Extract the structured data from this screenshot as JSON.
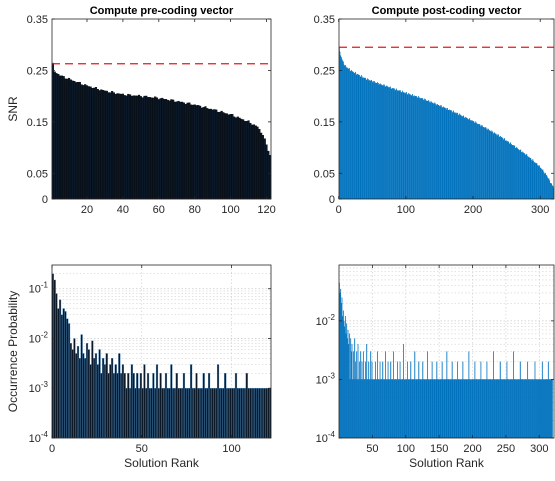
{
  "colors": {
    "dark_bar": "#0b1828",
    "blue_bar": "#0072bd",
    "threshold": "#e41a1c",
    "axis": "#262626",
    "grid": "#c8c8c8"
  },
  "chart_data": [
    {
      "type": "bar",
      "title": "Compute pre-coding vector",
      "xlabel": "",
      "ylabel": "SNR",
      "xlim": [
        0.5,
        122.5
      ],
      "ylim": [
        0,
        0.35
      ],
      "xticks": [
        20,
        40,
        60,
        80,
        100,
        120
      ],
      "yticks": [
        0,
        0.05,
        0.15,
        0.25,
        0.35
      ],
      "yticklabels": [
        "0",
        "0.05",
        "0.15",
        "0.25",
        "0.35"
      ],
      "threshold": 0.263,
      "series": [
        {
          "description": "SNR per solution, sorted descending",
          "n": 122,
          "anchors": [
            [
              1,
              0.262
            ],
            [
              2,
              0.248
            ],
            [
              5,
              0.24
            ],
            [
              10,
              0.233
            ],
            [
              20,
              0.22
            ],
            [
              30,
              0.21
            ],
            [
              40,
              0.203
            ],
            [
              50,
              0.2
            ],
            [
              60,
              0.196
            ],
            [
              70,
              0.19
            ],
            [
              80,
              0.183
            ],
            [
              90,
              0.174
            ],
            [
              100,
              0.164
            ],
            [
              110,
              0.15
            ],
            [
              115,
              0.14
            ],
            [
              118,
              0.125
            ],
            [
              120,
              0.105
            ],
            [
              122,
              0.085
            ]
          ]
        }
      ]
    },
    {
      "type": "bar",
      "title": "Compute post-coding vector",
      "xlabel": "",
      "ylabel": "",
      "xlim": [
        0.5,
        320.5
      ],
      "ylim": [
        0,
        0.35
      ],
      "xticks": [
        0,
        100,
        200,
        300
      ],
      "yticks": [
        0,
        0.05,
        0.15,
        0.25,
        0.35
      ],
      "yticklabels": [
        "0",
        "0.05",
        "0.15",
        "0.25",
        "0.35"
      ],
      "threshold": 0.295,
      "series": [
        {
          "description": "SNR per solution, sorted descending",
          "n": 320,
          "anchors": [
            [
              1,
              0.293
            ],
            [
              3,
              0.28
            ],
            [
              6,
              0.268
            ],
            [
              10,
              0.258
            ],
            [
              20,
              0.248
            ],
            [
              40,
              0.234
            ],
            [
              60,
              0.224
            ],
            [
              80,
              0.215
            ],
            [
              100,
              0.206
            ],
            [
              120,
              0.197
            ],
            [
              140,
              0.187
            ],
            [
              160,
              0.176
            ],
            [
              180,
              0.164
            ],
            [
              200,
              0.151
            ],
            [
              220,
              0.137
            ],
            [
              240,
              0.122
            ],
            [
              260,
              0.104
            ],
            [
              280,
              0.085
            ],
            [
              300,
              0.062
            ],
            [
              310,
              0.045
            ],
            [
              315,
              0.033
            ],
            [
              320,
              0.022
            ]
          ]
        }
      ]
    },
    {
      "type": "bar",
      "title": "",
      "xlabel": "Solution Rank",
      "ylabel": "Occurrence Probability",
      "yscale": "log",
      "xlim": [
        0,
        122
      ],
      "ylim": [
        0.0001,
        0.3
      ],
      "xticks": [
        0,
        50,
        100
      ],
      "yticks": [
        0.0001,
        0.001,
        0.01,
        0.1
      ],
      "yticklabels": [
        [
          "10",
          "-4"
        ],
        [
          "10",
          "-3"
        ],
        [
          "10",
          "-2"
        ],
        [
          "10",
          "-1"
        ]
      ],
      "series": [
        {
          "description": "occurrence probability per solution rank",
          "values": [
            0.2,
            0.15,
            0.08,
            0.04,
            0.06,
            0.03,
            0.04,
            0.035,
            0.025,
            0.02,
            0.008,
            0.006,
            0.01,
            0.005,
            0.007,
            0.004,
            0.012,
            0.005,
            0.004,
            0.008,
            0.006,
            0.003,
            0.009,
            0.004,
            0.005,
            0.003,
            0.006,
            0.002,
            0.004,
            0.003,
            0.005,
            0.002,
            0.003,
            0.004,
            0.002,
            0.003,
            0.002,
            0.005,
            0.002,
            0.003,
            0.002,
            0.001,
            0.002,
            0.001,
            0.003,
            0.002,
            0.001,
            0.002,
            0.001,
            0.002,
            0.001,
            0.003,
            0.001,
            0.002,
            0.001,
            0.001,
            0.002,
            0.001,
            0.003,
            0.001,
            0.002,
            0.001,
            0.001,
            0.002,
            0.001,
            0.001,
            0.003,
            0.001,
            0.001,
            0.002,
            0.001,
            0.001,
            0.001,
            0.002,
            0.001,
            0.001,
            0.001,
            0.003,
            0.001,
            0.001,
            0.002,
            0.001,
            0.001,
            0.001,
            0.002,
            0.001,
            0.001,
            0.002,
            0.001,
            0.001,
            0.001,
            0.001,
            0.003,
            0.001,
            0.001,
            0.001,
            0.002,
            0.001,
            0.001,
            0.001,
            0.001,
            0.001,
            0.002,
            0.001,
            0.001,
            0.001,
            0.001,
            0.001,
            0.002,
            0.001,
            0.001,
            0.001,
            0.001,
            0.001,
            0.001,
            0.001,
            0.001,
            0.001,
            0.001,
            0.001,
            0.001,
            0.001
          ]
        }
      ]
    },
    {
      "type": "bar",
      "title": "",
      "xlabel": "Solution Rank",
      "ylabel": "",
      "yscale": "log",
      "xlim": [
        0,
        322
      ],
      "ylim": [
        0.0001,
        0.09
      ],
      "xticks": [
        50,
        100,
        150,
        200,
        250,
        300
      ],
      "yticks": [
        0.0001,
        0.001,
        0.01
      ],
      "yticklabels": [
        [
          "10",
          "-4"
        ],
        [
          "10",
          "-3"
        ],
        [
          "10",
          "-2"
        ]
      ],
      "series": [
        {
          "description": "occurrence probability per solution rank; baseline 0.001 with sparse spikes",
          "n": 320,
          "baseline": 0.001,
          "spikes": [
            [
              1,
              0.045
            ],
            [
              2,
              0.03
            ],
            [
              3,
              0.035
            ],
            [
              4,
              0.02
            ],
            [
              5,
              0.025
            ],
            [
              6,
              0.012
            ],
            [
              7,
              0.015
            ],
            [
              8,
              0.01
            ],
            [
              9,
              0.008
            ],
            [
              10,
              0.012
            ],
            [
              11,
              0.006
            ],
            [
              12,
              0.009
            ],
            [
              13,
              0.005
            ],
            [
              14,
              0.007
            ],
            [
              15,
              0.004
            ],
            [
              16,
              0.006
            ],
            [
              18,
              0.005
            ],
            [
              19,
              0.003
            ],
            [
              20,
              0.004
            ],
            [
              22,
              0.003
            ],
            [
              24,
              0.005
            ],
            [
              25,
              0.002
            ],
            [
              27,
              0.003
            ],
            [
              29,
              0.004
            ],
            [
              31,
              0.002
            ],
            [
              33,
              0.003
            ],
            [
              35,
              0.002
            ],
            [
              37,
              0.003
            ],
            [
              40,
              0.002
            ],
            [
              42,
              0.004
            ],
            [
              45,
              0.002
            ],
            [
              48,
              0.003
            ],
            [
              50,
              0.002
            ],
            [
              55,
              0.002
            ],
            [
              58,
              0.003
            ],
            [
              62,
              0.002
            ],
            [
              66,
              0.002
            ],
            [
              70,
              0.003
            ],
            [
              74,
              0.002
            ],
            [
              78,
              0.002
            ],
            [
              82,
              0.003
            ],
            [
              88,
              0.002
            ],
            [
              92,
              0.002
            ],
            [
              97,
              0.004
            ],
            [
              103,
              0.002
            ],
            [
              108,
              0.002
            ],
            [
              114,
              0.003
            ],
            [
              120,
              0.002
            ],
            [
              126,
              0.002
            ],
            [
              133,
              0.003
            ],
            [
              140,
              0.002
            ],
            [
              147,
              0.002
            ],
            [
              155,
              0.002
            ],
            [
              162,
              0.003
            ],
            [
              170,
              0.002
            ],
            [
              178,
              0.002
            ],
            [
              186,
              0.002
            ],
            [
              195,
              0.003
            ],
            [
              204,
              0.002
            ],
            [
              213,
              0.002
            ],
            [
              222,
              0.002
            ],
            [
              232,
              0.003
            ],
            [
              242,
              0.002
            ],
            [
              252,
              0.002
            ],
            [
              262,
              0.003
            ],
            [
              272,
              0.002
            ],
            [
              283,
              0.002
            ],
            [
              294,
              0.002
            ],
            [
              305,
              0.002
            ],
            [
              314,
              0.002
            ]
          ]
        }
      ]
    }
  ]
}
